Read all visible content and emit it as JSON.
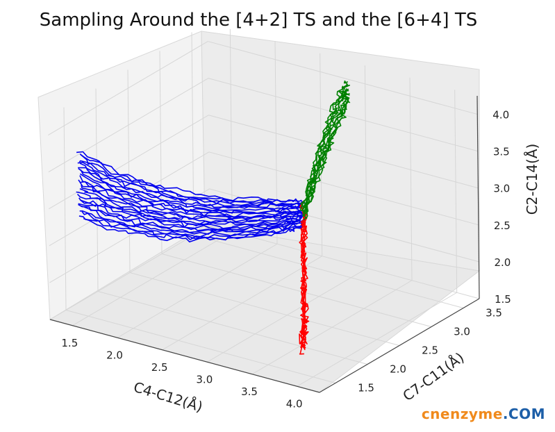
{
  "chart_data": {
    "type": "line3d",
    "title": "Sampling Around the [4+2] TS and the [6+4] TS",
    "xlabel": "C4-C12(Å)",
    "ylabel": "C7-C11(Å)",
    "zlabel": "C2-C14(Å)",
    "xlim": [
      1.25,
      4.25
    ],
    "ylim": [
      1.25,
      3.75
    ],
    "zlim": [
      1.5,
      4.25
    ],
    "xticks": [
      "1.5",
      "2.0",
      "2.5",
      "3.0",
      "3.5",
      "4.0"
    ],
    "yticks": [
      "1.5",
      "2.0",
      "2.5",
      "3.0",
      "3.5"
    ],
    "zticks": [
      "1.5",
      "2.0",
      "2.5",
      "3.0",
      "3.5",
      "4.0"
    ],
    "grid": true,
    "series": [
      {
        "color": "#0000ee",
        "description": "trajectory bundle",
        "points": [
          [
            1.45,
            1.45,
            3.3
          ],
          [
            1.7,
            1.6,
            3.1
          ],
          [
            2.0,
            1.8,
            2.95
          ],
          [
            2.3,
            2.0,
            2.85
          ],
          [
            2.6,
            2.25,
            2.8
          ],
          [
            2.9,
            2.55,
            2.78
          ],
          [
            3.05,
            2.7,
            2.78
          ]
        ],
        "copies": 26
      },
      {
        "color": "#ff0000",
        "description": "trajectory bundle",
        "points": [
          [
            3.05,
            2.7,
            2.8
          ],
          [
            3.15,
            2.55,
            2.45
          ],
          [
            3.3,
            2.35,
            2.15
          ],
          [
            3.45,
            2.15,
            1.9
          ],
          [
            3.55,
            2.0,
            1.72
          ],
          [
            3.6,
            1.9,
            1.6
          ]
        ],
        "copies": 6
      },
      {
        "color": "#008000",
        "description": "trajectory bundle",
        "points": [
          [
            3.05,
            2.7,
            2.8
          ],
          [
            3.05,
            2.85,
            3.15
          ],
          [
            3.05,
            3.0,
            3.45
          ],
          [
            3.05,
            3.15,
            3.72
          ],
          [
            3.05,
            3.3,
            3.95
          ],
          [
            3.05,
            3.4,
            4.1
          ]
        ],
        "copies": 10
      }
    ]
  },
  "watermark": {
    "part1": "cnenzyme",
    "part2": ".COM"
  }
}
